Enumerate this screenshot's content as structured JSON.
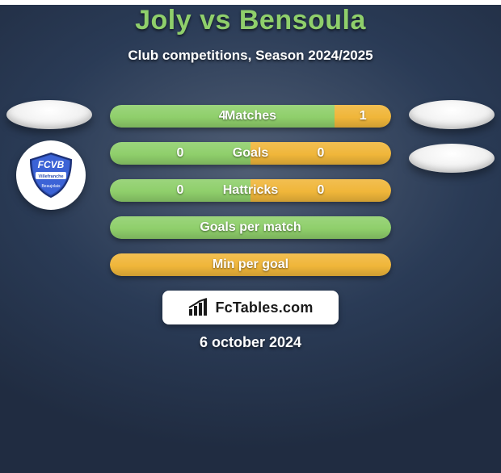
{
  "background_color": "#2a3b56",
  "title": {
    "text": "Joly vs Bensoula",
    "color": "#8fcf6b",
    "fontsize": 34
  },
  "subtitle": {
    "text": "Club competitions, Season 2024/2025",
    "color": "#ffffff",
    "fontsize": 17
  },
  "left_badge": {
    "text_top": "FCVB",
    "bg": "#2d4fb0",
    "text_color": "#ffffff"
  },
  "bars": {
    "label_color": "#ffffff",
    "label_fontsize": 16,
    "value_fontsize": 16,
    "value_color": "#ffffff",
    "colors": {
      "p1": "#8fcf6b",
      "p2": "#f0b63a"
    },
    "rows": [
      {
        "label": "Matches",
        "p1_value": "4",
        "p2_value": "1",
        "p1_pct": 80,
        "p2_pct": 20,
        "show_values": true
      },
      {
        "label": "Goals",
        "p1_value": "0",
        "p2_value": "0",
        "p1_pct": 50,
        "p2_pct": 50,
        "show_values": true
      },
      {
        "label": "Hattricks",
        "p1_value": "0",
        "p2_value": "0",
        "p1_pct": 50,
        "p2_pct": 50,
        "show_values": true
      },
      {
        "label": "Goals per match",
        "p1_value": "",
        "p2_value": "",
        "p1_pct": 100,
        "p2_pct": 0,
        "show_values": false,
        "full_color": "p1"
      },
      {
        "label": "Min per goal",
        "p1_value": "",
        "p2_value": "",
        "p1_pct": 0,
        "p2_pct": 100,
        "show_values": false,
        "full_color": "p2"
      }
    ]
  },
  "brand": {
    "bg": "#ffffff",
    "text": "FcTables.com",
    "text_color": "#1a1a1a",
    "icon_color": "#1a1a1a",
    "fontsize": 18
  },
  "date": {
    "text": "6 october 2024",
    "color": "#ffffff",
    "fontsize": 18
  }
}
